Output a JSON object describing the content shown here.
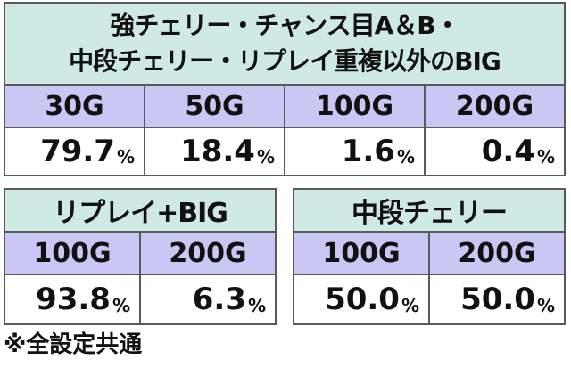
{
  "table1": {
    "title_line1": "強チェリー・チャンス目A＆B・",
    "title_line2": "中段チェリー・リプレイ重複以外のBIG",
    "headers": [
      "30G",
      "50G",
      "100G",
      "200G"
    ],
    "values": [
      "79.7",
      "18.4",
      "1.6",
      "0.4"
    ]
  },
  "table2": {
    "title": "リプレイ+BIG",
    "headers": [
      "100G",
      "200G"
    ],
    "values": [
      "93.8",
      "6.3"
    ]
  },
  "table3": {
    "title": "中段チェリー",
    "headers": [
      "100G",
      "200G"
    ],
    "values": [
      "50.0",
      "50.0"
    ]
  },
  "percent_sign": "%",
  "footnote": "※全設定共通",
  "colors": {
    "title_bg": "#cfeae4",
    "header_bg": "#c9c7f3",
    "border": "#5a5a5a"
  }
}
